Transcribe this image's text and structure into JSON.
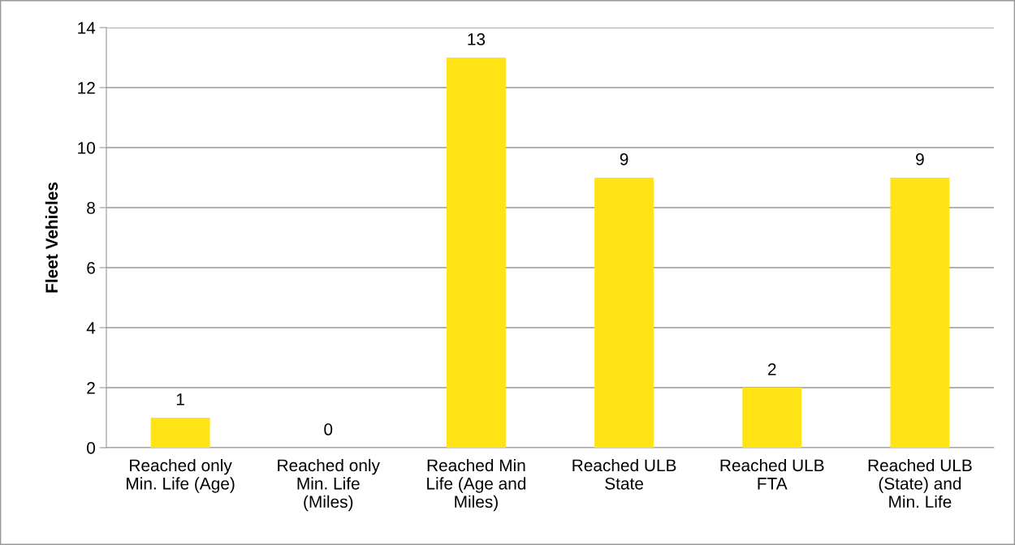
{
  "chart_data": {
    "type": "bar",
    "ylabel": "Fleet Vehicles",
    "categories": [
      "Reached only\nMin. Life (Age)",
      "Reached only\nMin. Life\n(Miles)",
      "Reached Min\nLife (Age and\nMiles)",
      "Reached ULB\nState",
      "Reached ULB\nFTA",
      "Reached ULB\n(State) and\nMin. Life"
    ],
    "values": [
      1,
      0,
      13,
      9,
      2,
      9
    ],
    "color": "#ffe314",
    "ylim": [
      0,
      14
    ],
    "yticks": [
      0,
      2,
      4,
      6,
      8,
      10,
      12,
      14
    ],
    "grid": "y",
    "data_labels": true,
    "legend": false
  }
}
